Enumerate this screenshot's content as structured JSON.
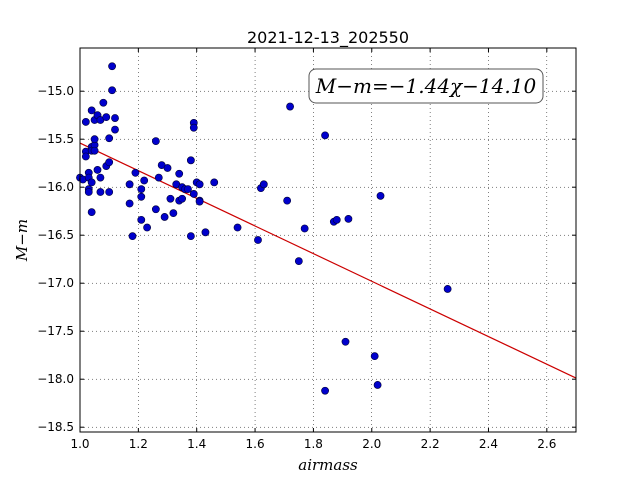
{
  "chart_data": {
    "type": "scatter",
    "title": "2021-12-13_202550",
    "xlabel": "airmass",
    "ylabel": "M−m",
    "xlim": [
      1.0,
      2.7
    ],
    "ylim": [
      -18.55,
      -14.55
    ],
    "y_inverted": true,
    "grid": true,
    "xticks": [
      "1.0",
      "1.2",
      "1.4",
      "1.6",
      "1.8",
      "2.0",
      "2.2",
      "2.4",
      "2.6"
    ],
    "xtick_values": [
      1.0,
      1.2,
      1.4,
      1.6,
      1.8,
      2.0,
      2.2,
      2.4,
      2.6
    ],
    "yticks": [
      "−15.0",
      "−15.5",
      "−16.0",
      "−16.5",
      "−17.0",
      "−17.5",
      "−18.0",
      "−18.5"
    ],
    "ytick_values": [
      -15.0,
      -15.5,
      -16.0,
      -16.5,
      -17.0,
      -17.5,
      -18.0,
      -18.5
    ],
    "annotation": "M−m=−1.44χ−14.10",
    "fit": {
      "slope": -1.44,
      "intercept": -14.1,
      "color": "#cc0000"
    },
    "point_color": "#0000cc",
    "points": [
      [
        1.0,
        -15.9
      ],
      [
        1.01,
        -15.92
      ],
      [
        1.02,
        -15.63
      ],
      [
        1.02,
        -15.32
      ],
      [
        1.02,
        -15.68
      ],
      [
        1.03,
        -15.85
      ],
      [
        1.03,
        -15.9
      ],
      [
        1.03,
        -16.02
      ],
      [
        1.03,
        -16.05
      ],
      [
        1.04,
        -15.2
      ],
      [
        1.04,
        -15.58
      ],
      [
        1.04,
        -15.62
      ],
      [
        1.04,
        -15.95
      ],
      [
        1.04,
        -16.26
      ],
      [
        1.05,
        -15.3
      ],
      [
        1.05,
        -15.56
      ],
      [
        1.05,
        -15.62
      ],
      [
        1.05,
        -15.5
      ],
      [
        1.06,
        -15.25
      ],
      [
        1.06,
        -15.82
      ],
      [
        1.07,
        -15.3
      ],
      [
        1.07,
        -15.9
      ],
      [
        1.07,
        -16.05
      ],
      [
        1.08,
        -15.12
      ],
      [
        1.09,
        -15.27
      ],
      [
        1.09,
        -15.78
      ],
      [
        1.1,
        -15.49
      ],
      [
        1.1,
        -15.74
      ],
      [
        1.1,
        -16.05
      ],
      [
        1.11,
        -14.99
      ],
      [
        1.11,
        -14.74
      ],
      [
        1.12,
        -15.28
      ],
      [
        1.12,
        -15.4
      ],
      [
        1.17,
        -16.17
      ],
      [
        1.17,
        -15.97
      ],
      [
        1.18,
        -16.51
      ],
      [
        1.19,
        -15.85
      ],
      [
        1.21,
        -16.34
      ],
      [
        1.21,
        -16.02
      ],
      [
        1.21,
        -16.1
      ],
      [
        1.22,
        -15.93
      ],
      [
        1.23,
        -16.42
      ],
      [
        1.26,
        -15.52
      ],
      [
        1.26,
        -16.23
      ],
      [
        1.27,
        -15.9
      ],
      [
        1.28,
        -15.77
      ],
      [
        1.29,
        -16.31
      ],
      [
        1.3,
        -15.8
      ],
      [
        1.31,
        -16.12
      ],
      [
        1.32,
        -16.27
      ],
      [
        1.33,
        -15.97
      ],
      [
        1.34,
        -16.14
      ],
      [
        1.34,
        -15.86
      ],
      [
        1.35,
        -16.0
      ],
      [
        1.35,
        -16.12
      ],
      [
        1.36,
        -16.02
      ],
      [
        1.37,
        -16.02
      ],
      [
        1.38,
        -15.72
      ],
      [
        1.38,
        -16.51
      ],
      [
        1.39,
        -16.07
      ],
      [
        1.39,
        -15.33
      ],
      [
        1.39,
        -15.38
      ],
      [
        1.4,
        -15.95
      ],
      [
        1.41,
        -15.97
      ],
      [
        1.41,
        -16.14
      ],
      [
        1.41,
        -16.15
      ],
      [
        1.43,
        -16.47
      ],
      [
        1.46,
        -15.95
      ],
      [
        1.54,
        -16.42
      ],
      [
        1.61,
        -16.55
      ],
      [
        1.62,
        -16.01
      ],
      [
        1.63,
        -15.97
      ],
      [
        1.71,
        -16.14
      ],
      [
        1.72,
        -15.16
      ],
      [
        1.75,
        -16.77
      ],
      [
        1.77,
        -16.43
      ],
      [
        1.84,
        -15.46
      ],
      [
        1.84,
        -18.12
      ],
      [
        1.87,
        -16.36
      ],
      [
        1.88,
        -16.34
      ],
      [
        1.91,
        -17.61
      ],
      [
        1.92,
        -16.33
      ],
      [
        2.01,
        -17.76
      ],
      [
        2.02,
        -18.06
      ],
      [
        2.03,
        -16.09
      ],
      [
        2.26,
        -17.06
      ]
    ]
  }
}
